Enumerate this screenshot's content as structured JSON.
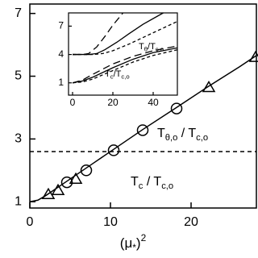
{
  "chart_data": [
    {
      "type": "line",
      "xlabel": "(μ_{*})^{2}",
      "xlim": [
        0,
        28.1
      ],
      "ylim": [
        0.8,
        7.3
      ],
      "xticks": [
        0,
        10,
        20
      ],
      "yticks": [
        1,
        3,
        5,
        7
      ],
      "hline": 2.6,
      "annotations": [
        "T_{θ,o} / T_{c,o}",
        "T_{c} / T_{c,o}"
      ],
      "series": [
        {
          "linestyle": "solid",
          "marker": "none",
          "color": "#000000",
          "x": [
            0,
            1,
            2,
            4,
            6,
            8,
            10,
            14,
            18,
            22,
            26,
            28.1
          ],
          "values": [
            1.0,
            1.05,
            1.2,
            1.55,
            1.9,
            2.25,
            2.6,
            3.3,
            3.97,
            4.65,
            5.3,
            5.66
          ]
        },
        {
          "linestyle": "none",
          "marker": "triangle",
          "color": "#000000",
          "x": [
            2.3,
            3.5,
            5.7,
            22.2,
            28
          ],
          "values": [
            1.23,
            1.36,
            1.72,
            4.64,
            5.6
          ]
        },
        {
          "linestyle": "none",
          "marker": "circle",
          "color": "#000000",
          "x": [
            4.6,
            7.0,
            10.4,
            14,
            18.2
          ],
          "values": [
            1.62,
            2.0,
            2.64,
            3.28,
            3.97
          ]
        }
      ]
    },
    {
      "type": "line",
      "xlim": [
        -2,
        52
      ],
      "ylim": [
        -0.3,
        8.4
      ],
      "xticks": [
        0,
        20,
        40
      ],
      "yticks": [
        1,
        4,
        7
      ],
      "annotations": [
        "T_{θ}/T_{c,o}",
        "T_{c}/T_{c,o}"
      ],
      "series": [
        {
          "linestyle": "longdash",
          "color": "#000000",
          "x": [
            0,
            5,
            8,
            12,
            16,
            20,
            25
          ],
          "values": [
            4,
            4,
            4.1,
            4.8,
            5.9,
            7.1,
            8.4
          ]
        },
        {
          "linestyle": "solid",
          "color": "#000000",
          "x": [
            0,
            8,
            12,
            16,
            22,
            28,
            35,
            45
          ],
          "values": [
            4,
            4,
            4.1,
            4.5,
            5.3,
            6.2,
            7.2,
            8.4
          ]
        },
        {
          "linestyle": "shortdash",
          "color": "#000000",
          "x": [
            0,
            10,
            15,
            20,
            28,
            36,
            44,
            52
          ],
          "values": [
            4,
            4,
            4.1,
            4.4,
            5.1,
            5.9,
            6.7,
            7.5
          ]
        },
        {
          "linestyle": "longdash",
          "color": "#000000",
          "x": [
            0,
            5,
            10,
            20,
            30,
            40,
            52
          ],
          "values": [
            1,
            1.3,
            1.9,
            3.0,
            3.8,
            4.4,
            4.9
          ]
        },
        {
          "linestyle": "solid",
          "color": "#000000",
          "x": [
            0,
            5,
            10,
            20,
            30,
            40,
            52
          ],
          "values": [
            1,
            1.2,
            1.6,
            2.6,
            3.5,
            4.2,
            4.7
          ]
        },
        {
          "linestyle": "shortdash",
          "color": "#000000",
          "x": [
            0,
            5,
            10,
            20,
            30,
            40,
            52
          ],
          "values": [
            1,
            1.1,
            1.4,
            2.3,
            3.2,
            3.9,
            4.5
          ]
        }
      ]
    }
  ]
}
